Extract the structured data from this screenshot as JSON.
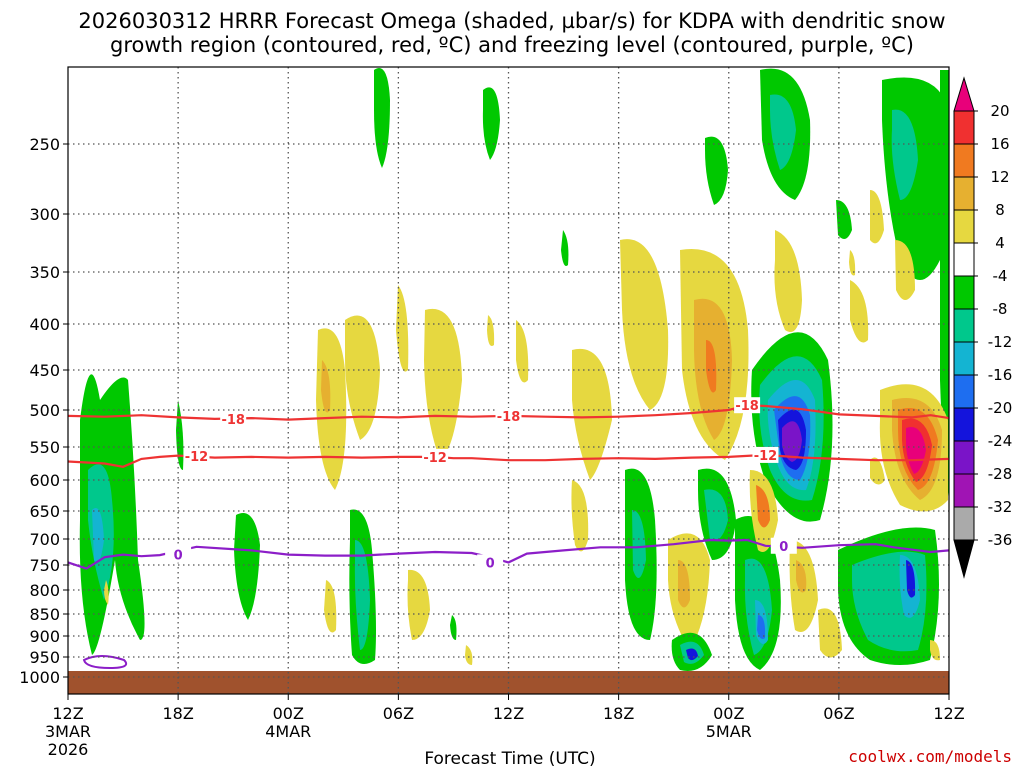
{
  "chart_data": {
    "type": "time-height contour",
    "title_line1": "2026030312 HRRR Forecast Omega (shaded, µbar/s) for KDPA with dendritic snow",
    "title_line2": "growth region (contoured, red, ºC) and freezing level (contoured, purple, ºC)",
    "xlabel": "Forecast Time (UTC)",
    "credit": "coolwx.com/models",
    "y_axis": {
      "unit": "hPa",
      "range": [
        200,
        1035
      ],
      "ticks": [
        "250",
        "300",
        "350",
        "400",
        "450",
        "500",
        "550",
        "600",
        "650",
        "700",
        "750",
        "800",
        "850",
        "900",
        "950",
        "1000"
      ]
    },
    "x_axis": {
      "unit": "forecast hour",
      "range": [
        0,
        48
      ],
      "ticks": [
        {
          "hour": 0,
          "label": "12Z",
          "sub1": "3MAR",
          "sub2": "2026"
        },
        {
          "hour": 6,
          "label": "18Z",
          "sub1": "",
          "sub2": ""
        },
        {
          "hour": 12,
          "label": "00Z",
          "sub1": "4MAR",
          "sub2": ""
        },
        {
          "hour": 18,
          "label": "06Z",
          "sub1": "",
          "sub2": ""
        },
        {
          "hour": 24,
          "label": "12Z",
          "sub1": "",
          "sub2": ""
        },
        {
          "hour": 30,
          "label": "18Z",
          "sub1": "",
          "sub2": ""
        },
        {
          "hour": 36,
          "label": "00Z",
          "sub1": "5MAR",
          "sub2": ""
        },
        {
          "hour": 42,
          "label": "06Z",
          "sub1": "",
          "sub2": ""
        },
        {
          "hour": 48,
          "label": "12Z",
          "sub1": "",
          "sub2": ""
        }
      ]
    },
    "colorbar": {
      "labels": [
        "20",
        "16",
        "12",
        "8",
        "4",
        "-4",
        "-8",
        "-12",
        "-16",
        "-20",
        "-24",
        "-28",
        "-32",
        "-36"
      ],
      "colors": [
        "#e8007a",
        "#f03030",
        "#f07a20",
        "#e6b030",
        "#e6d840",
        "#ffffff",
        "#00c800",
        "#00c88c",
        "#14b4d2",
        "#1e6ef0",
        "#1414dc",
        "#7a14c8",
        "#a014b4",
        "#aaaaaa",
        "#000000"
      ]
    },
    "contours": [
      {
        "name": "dendritic-top",
        "value": "-18",
        "color": "#ee3333",
        "points": [
          [
            0,
            508
          ],
          [
            2,
            509
          ],
          [
            4,
            507
          ],
          [
            6,
            510
          ],
          [
            8,
            512
          ],
          [
            10,
            511
          ],
          [
            12,
            513
          ],
          [
            14,
            511
          ],
          [
            16,
            509
          ],
          [
            18,
            510
          ],
          [
            20,
            508
          ],
          [
            22,
            509
          ],
          [
            24,
            508
          ],
          [
            26,
            509
          ],
          [
            28,
            510
          ],
          [
            30,
            509
          ],
          [
            32,
            507
          ],
          [
            34,
            504
          ],
          [
            36,
            500
          ],
          [
            37,
            494
          ],
          [
            38,
            495
          ],
          [
            40,
            499
          ],
          [
            42,
            506
          ],
          [
            44,
            508
          ],
          [
            46,
            510
          ],
          [
            47,
            507
          ],
          [
            48,
            511
          ]
        ],
        "labels": [
          [
            9,
            512
          ],
          [
            24,
            508
          ],
          [
            37,
            494
          ]
        ]
      },
      {
        "name": "dendritic-bottom",
        "value": "-12",
        "color": "#ee3333",
        "points": [
          [
            0,
            572
          ],
          [
            2,
            575
          ],
          [
            3,
            580
          ],
          [
            4,
            568
          ],
          [
            5,
            565
          ],
          [
            6,
            563
          ],
          [
            8,
            566
          ],
          [
            10,
            565
          ],
          [
            12,
            566
          ],
          [
            14,
            565
          ],
          [
            16,
            566
          ],
          [
            18,
            565
          ],
          [
            20,
            565
          ],
          [
            21,
            567
          ],
          [
            22,
            567
          ],
          [
            24,
            570
          ],
          [
            26,
            570
          ],
          [
            28,
            568
          ],
          [
            30,
            567
          ],
          [
            32,
            568
          ],
          [
            34,
            566
          ],
          [
            36,
            565
          ],
          [
            38,
            562
          ],
          [
            40,
            566
          ],
          [
            42,
            568
          ],
          [
            44,
            570
          ],
          [
            46,
            570
          ],
          [
            48,
            568
          ]
        ],
        "labels": [
          [
            7,
            564
          ],
          [
            20,
            565
          ],
          [
            38,
            562
          ]
        ]
      },
      {
        "name": "freezing-level",
        "value": "0",
        "color": "#8c1ec8",
        "points": [
          [
            0,
            745
          ],
          [
            1,
            757
          ],
          [
            2,
            735
          ],
          [
            3,
            730
          ],
          [
            4,
            733
          ],
          [
            5,
            731
          ],
          [
            7,
            715
          ],
          [
            10,
            722
          ],
          [
            12,
            730
          ],
          [
            14,
            732
          ],
          [
            16,
            732
          ],
          [
            18,
            728
          ],
          [
            20,
            725
          ],
          [
            22,
            727
          ],
          [
            23,
            735
          ],
          [
            24,
            745
          ],
          [
            25,
            728
          ],
          [
            27,
            722
          ],
          [
            29,
            716
          ],
          [
            31,
            716
          ],
          [
            33,
            710
          ],
          [
            35,
            702
          ],
          [
            36,
            703
          ],
          [
            37,
            702
          ],
          [
            38,
            713
          ],
          [
            40,
            717
          ],
          [
            42,
            712
          ],
          [
            44,
            710
          ],
          [
            45,
            716
          ],
          [
            47,
            725
          ],
          [
            48,
            722
          ]
        ],
        "labels": [
          [
            6,
            730
          ],
          [
            23,
            745
          ],
          [
            39,
            713
          ]
        ]
      }
    ]
  }
}
